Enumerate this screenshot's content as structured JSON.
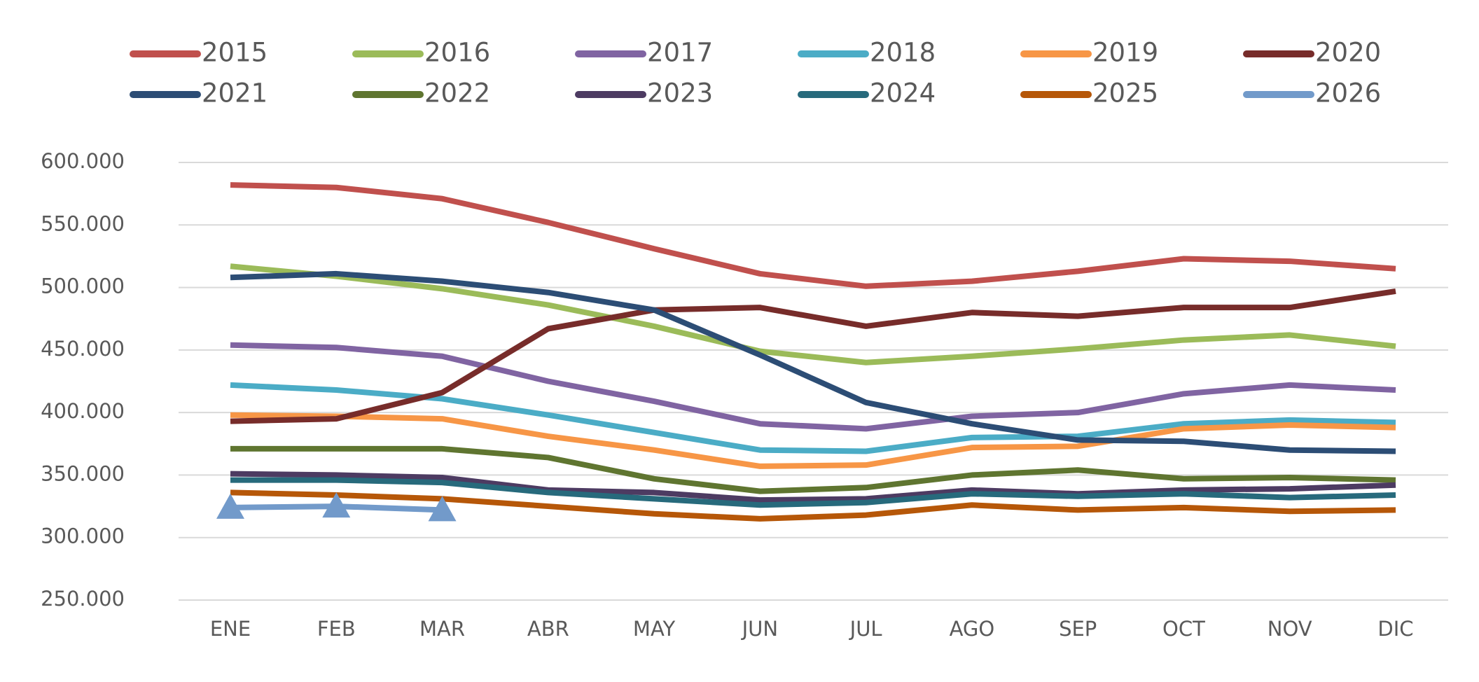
{
  "chart_data": {
    "type": "line",
    "categories": [
      "ENE",
      "FEB",
      "MAR",
      "ABR",
      "MAY",
      "JUN",
      "JUL",
      "AGO",
      "SEP",
      "OCT",
      "NOV",
      "DIC"
    ],
    "series": [
      {
        "name": "2015",
        "color": "#c0504d",
        "values": [
          582000,
          580000,
          571000,
          552000,
          531000,
          511000,
          501000,
          505000,
          513000,
          523000,
          521000,
          515000
        ]
      },
      {
        "name": "2016",
        "color": "#9bbb59",
        "values": [
          517000,
          509000,
          499000,
          486000,
          469000,
          449000,
          440000,
          445000,
          451000,
          458000,
          462000,
          453000
        ]
      },
      {
        "name": "2017",
        "color": "#8064a2",
        "values": [
          454000,
          452000,
          445000,
          425000,
          409000,
          391000,
          387000,
          397000,
          400000,
          415000,
          422000,
          418000
        ]
      },
      {
        "name": "2018",
        "color": "#4bacc6",
        "values": [
          422000,
          418000,
          411000,
          398000,
          384000,
          370000,
          369000,
          380000,
          381000,
          391000,
          394000,
          392000
        ]
      },
      {
        "name": "2019",
        "color": "#f79646",
        "values": [
          398000,
          397000,
          395000,
          381000,
          370000,
          357000,
          358000,
          372000,
          373000,
          387000,
          390000,
          388000
        ]
      },
      {
        "name": "2020",
        "color": "#772c2a",
        "values": [
          393000,
          395000,
          416000,
          467000,
          482000,
          484000,
          469000,
          480000,
          477000,
          484000,
          484000,
          497000
        ]
      },
      {
        "name": "2021",
        "color": "#2c4d75",
        "values": [
          508000,
          511000,
          505000,
          496000,
          482000,
          446000,
          408000,
          391000,
          378000,
          377000,
          370000,
          369000
        ]
      },
      {
        "name": "2022",
        "color": "#5f7530",
        "values": [
          371000,
          371000,
          371000,
          364000,
          347000,
          337000,
          340000,
          350000,
          354000,
          347000,
          348000,
          346000
        ]
      },
      {
        "name": "2023",
        "color": "#4d3b62",
        "values": [
          351000,
          350000,
          348000,
          338000,
          336000,
          330000,
          331000,
          338000,
          335000,
          338000,
          339000,
          342000
        ]
      },
      {
        "name": "2024",
        "color": "#276a7c",
        "values": [
          346000,
          346000,
          344000,
          336000,
          331000,
          326000,
          328000,
          335000,
          333000,
          335000,
          332000,
          334000
        ]
      },
      {
        "name": "2025",
        "color": "#b65708",
        "values": [
          336000,
          334000,
          331000,
          325000,
          319000,
          315000,
          318000,
          326000,
          322000,
          324000,
          321000,
          322000
        ]
      },
      {
        "name": "2026",
        "color": "#729aca",
        "marker": "triangle",
        "values": [
          324000,
          325000,
          322000,
          null,
          null,
          null,
          null,
          null,
          null,
          null,
          null,
          null
        ]
      }
    ],
    "ylim": [
      250000,
      600000
    ],
    "yticks": [
      {
        "value": 250000,
        "label": "250.000"
      },
      {
        "value": 300000,
        "label": "300.000"
      },
      {
        "value": 350000,
        "label": "350.000"
      },
      {
        "value": 400000,
        "label": "400.000"
      },
      {
        "value": 450000,
        "label": "450.000"
      },
      {
        "value": 500000,
        "label": "500.000"
      },
      {
        "value": 550000,
        "label": "550.000"
      },
      {
        "value": 600000,
        "label": "600.000"
      }
    ],
    "grid": true,
    "legend": "top"
  }
}
